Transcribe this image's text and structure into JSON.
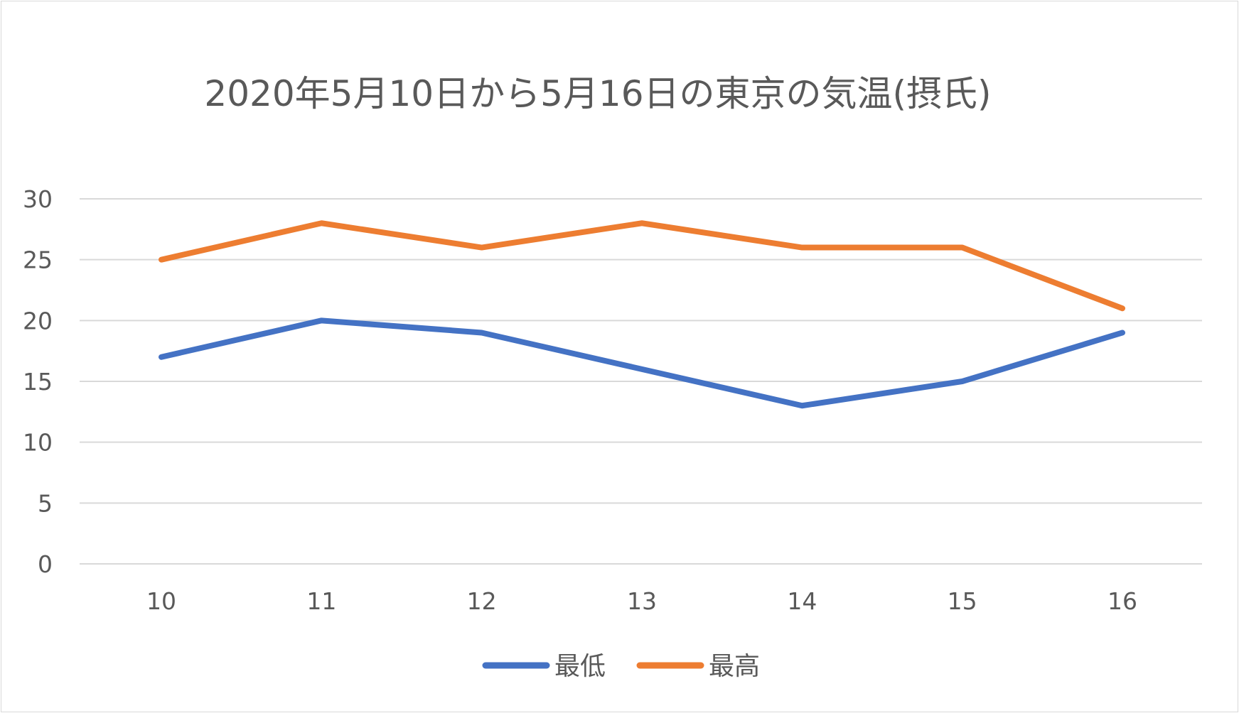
{
  "chart_data": {
    "type": "line",
    "title": "2020年5月10日から5月16日の東京の気温(摂氏)",
    "xlabel": "",
    "ylabel": "",
    "categories": [
      "10",
      "11",
      "12",
      "13",
      "14",
      "15",
      "16"
    ],
    "ylim": [
      0,
      30
    ],
    "yticks": [
      0,
      5,
      10,
      15,
      20,
      25,
      30
    ],
    "grid": true,
    "legend_position": "bottom",
    "series": [
      {
        "name": "最低",
        "color": "#4472C4",
        "values": [
          17,
          20,
          19,
          16,
          13,
          15,
          19
        ]
      },
      {
        "name": "最高",
        "color": "#ED7D31",
        "values": [
          25,
          28,
          26,
          28,
          26,
          26,
          21
        ]
      }
    ]
  }
}
